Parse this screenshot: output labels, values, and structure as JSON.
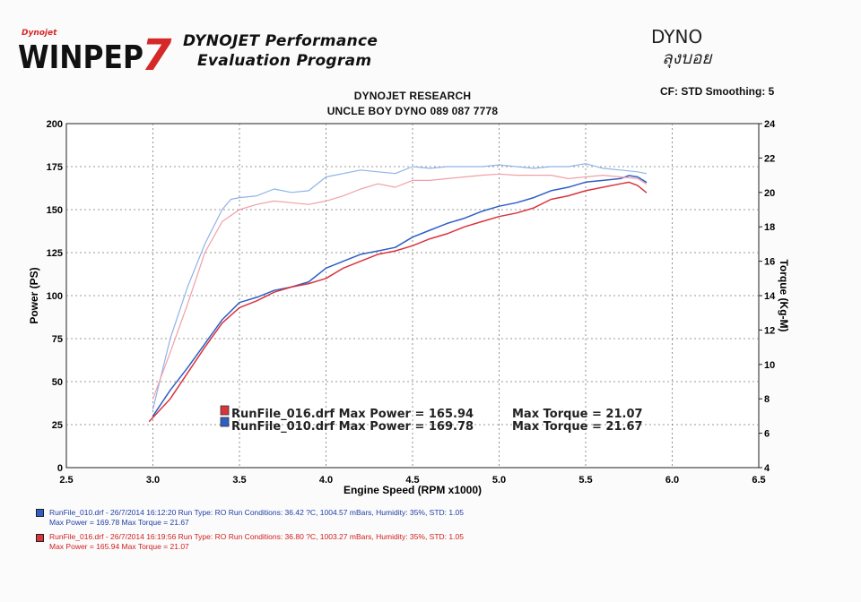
{
  "header": {
    "logo_small": "Dynojet",
    "logo_main": "WINPEP",
    "logo_number": "7",
    "title_line1": "DYNOJET Performance",
    "title_line2": "Evaluation Program",
    "dyno_brand": "DYNO",
    "dyno_sub": "ลุงบอย"
  },
  "colors": {
    "blue": "#2e5fc4",
    "blue_light": "#8fb4e8",
    "red": "#d8353d",
    "red_light": "#f0a0a6",
    "logo_red": "#d62828"
  },
  "chart_data": {
    "type": "line",
    "title": "DYNOJET RESEARCH",
    "subtitle": "UNCLE BOY DYNO 089 087 7778",
    "settings": "CF: STD  Smoothing: 5",
    "xlabel": "Engine Speed (RPM x1000)",
    "ylabel_left": "Power (PS)",
    "ylabel_right": "Torque (Kg-M)",
    "xlim": [
      2.5,
      6.5
    ],
    "ylim_left": [
      0,
      200
    ],
    "ylim_right": [
      4,
      24
    ],
    "xticks": [
      "2.5",
      "3.0",
      "3.5",
      "4.0",
      "4.5",
      "5.0",
      "5.5",
      "6.0",
      "6.5"
    ],
    "yticks_left": [
      "0",
      "25",
      "50",
      "75",
      "100",
      "125",
      "150",
      "175",
      "200"
    ],
    "yticks_right": [
      "4",
      "6",
      "8",
      "10",
      "12",
      "14",
      "16",
      "18",
      "20",
      "22",
      "24"
    ],
    "grid": true,
    "series": [
      {
        "name": "RunFile_010.drf",
        "metric": "power",
        "x": [
          3.0,
          3.1,
          3.2,
          3.3,
          3.4,
          3.5,
          3.6,
          3.7,
          3.8,
          3.9,
          4.0,
          4.1,
          4.2,
          4.3,
          4.4,
          4.5,
          4.6,
          4.7,
          4.8,
          4.9,
          5.0,
          5.1,
          5.2,
          5.3,
          5.4,
          5.5,
          5.6,
          5.7,
          5.75,
          5.8,
          5.85
        ],
        "values": [
          30,
          45,
          58,
          72,
          86,
          96,
          99,
          103,
          105,
          108,
          116,
          120,
          124,
          126,
          128,
          134,
          138,
          142,
          145,
          149,
          152,
          154,
          157,
          161,
          163,
          166,
          167,
          168,
          169.78,
          169,
          166
        ]
      },
      {
        "name": "RunFile_016.drf",
        "metric": "power",
        "x": [
          2.98,
          3.1,
          3.2,
          3.3,
          3.4,
          3.5,
          3.6,
          3.7,
          3.8,
          3.9,
          4.0,
          4.1,
          4.2,
          4.3,
          4.4,
          4.5,
          4.6,
          4.7,
          4.8,
          4.9,
          5.0,
          5.1,
          5.2,
          5.3,
          5.4,
          5.5,
          5.6,
          5.7,
          5.75,
          5.8,
          5.85
        ],
        "values": [
          27,
          40,
          55,
          70,
          84,
          93,
          97,
          102,
          105,
          107,
          110,
          116,
          120,
          124,
          126,
          129,
          133,
          136,
          140,
          143,
          146,
          148,
          151,
          156,
          158,
          161,
          163,
          165,
          165.94,
          164,
          160
        ]
      },
      {
        "name": "RunFile_010.drf",
        "metric": "torque",
        "x": [
          3.0,
          3.1,
          3.2,
          3.3,
          3.4,
          3.45,
          3.5,
          3.6,
          3.7,
          3.8,
          3.9,
          4.0,
          4.1,
          4.2,
          4.3,
          4.4,
          4.5,
          4.6,
          4.7,
          4.8,
          4.9,
          5.0,
          5.1,
          5.2,
          5.3,
          5.4,
          5.5,
          5.6,
          5.7,
          5.8,
          5.85
        ],
        "values": [
          7.4,
          11.5,
          14.5,
          17.0,
          19.0,
          19.6,
          19.7,
          19.8,
          20.2,
          20.0,
          20.1,
          20.9,
          21.1,
          21.3,
          21.2,
          21.1,
          21.5,
          21.4,
          21.5,
          21.5,
          21.5,
          21.6,
          21.5,
          21.4,
          21.5,
          21.5,
          21.67,
          21.4,
          21.3,
          21.2,
          21.1
        ]
      },
      {
        "name": "RunFile_016.drf",
        "metric": "torque",
        "x": [
          3.0,
          3.1,
          3.2,
          3.3,
          3.4,
          3.5,
          3.6,
          3.7,
          3.8,
          3.9,
          4.0,
          4.1,
          4.2,
          4.3,
          4.4,
          4.5,
          4.6,
          4.7,
          4.8,
          4.9,
          5.0,
          5.1,
          5.2,
          5.3,
          5.4,
          5.5,
          5.6,
          5.7,
          5.8,
          5.85
        ],
        "values": [
          8.0,
          10.7,
          13.5,
          16.5,
          18.3,
          19.0,
          19.3,
          19.5,
          19.4,
          19.3,
          19.5,
          19.8,
          20.2,
          20.5,
          20.3,
          20.7,
          20.7,
          20.8,
          20.9,
          21.0,
          21.07,
          21.0,
          21.0,
          21.0,
          20.8,
          20.9,
          21.0,
          20.9,
          20.8,
          20.5
        ]
      }
    ],
    "annotations": [
      {
        "run": "RunFile_016.drf",
        "label": "RunFile_016.drf Max Power = 165.94",
        "torque": "Max Torque = 21.07"
      },
      {
        "run": "RunFile_010.drf",
        "label": "RunFile_010.drf Max Power = 169.78",
        "torque": "Max Torque = 21.67"
      }
    ],
    "legend": "bottom-left"
  },
  "footer": {
    "run1_line1": "RunFile_010.drf - 26/7/2014 16:12:20   Run Type: RO   Run Conditions: 36.42 ?C, 1004.57 mBars,   Humidity:  35%,  STD: 1.05",
    "run1_line2": "Max Power = 169.78   Max Torque = 21.67",
    "run2_line1": "RunFile_016.drf - 26/7/2014 16:19:56   Run Type: RO   Run Conditions: 36.80 ?C, 1003.27 mBars,   Humidity:  35%,  STD: 1.05",
    "run2_line2": "Max Power = 165.94   Max Torque = 21.07"
  }
}
